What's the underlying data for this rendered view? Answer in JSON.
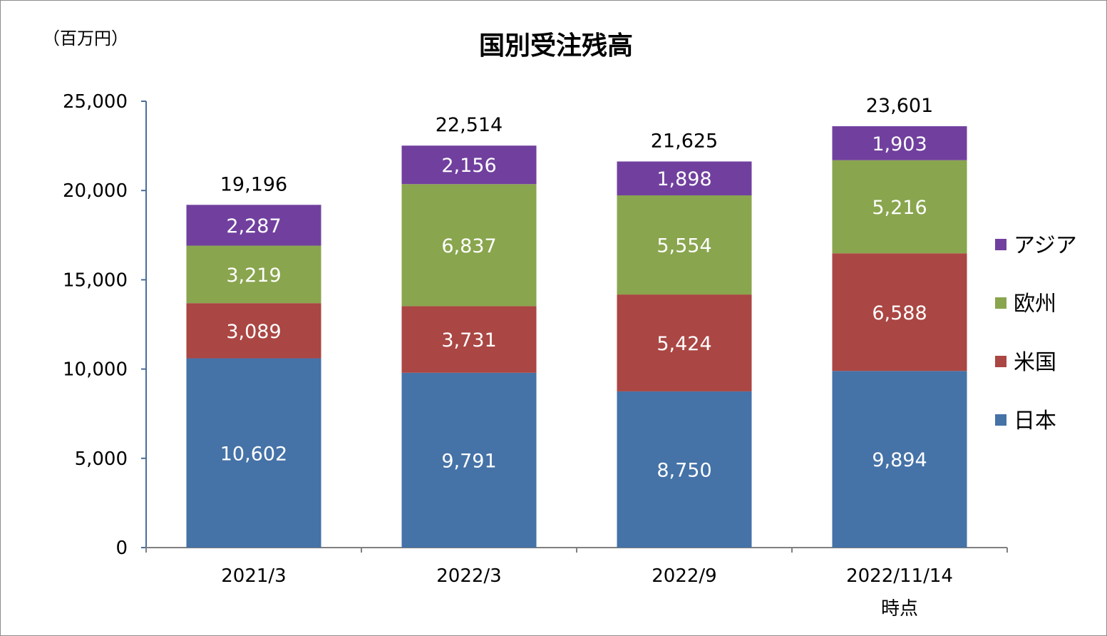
{
  "chart_data": {
    "type": "bar",
    "stacked": true,
    "title": "国別受注残高",
    "unit_label": "（百万円）",
    "categories": [
      "2021/3",
      "2022/3",
      "2022/9",
      "2022/11/14\n時点"
    ],
    "series": [
      {
        "name": "日本",
        "color": "#4572A7",
        "values": [
          10602,
          9791,
          8750,
          9894
        ],
        "labels": [
          "10,602",
          "9,791",
          "8,750",
          "9,894"
        ]
      },
      {
        "name": "米国",
        "color": "#AA4643",
        "values": [
          3089,
          3731,
          5424,
          6588
        ],
        "labels": [
          "3,089",
          "3,731",
          "5,424",
          "6,588"
        ]
      },
      {
        "name": "欧州",
        "color": "#89A54E",
        "values": [
          3219,
          6837,
          5554,
          5216
        ],
        "labels": [
          "3,219",
          "6,837",
          "5,554",
          "5,216"
        ]
      },
      {
        "name": "アジア",
        "color": "#71409E",
        "values": [
          2287,
          2156,
          1898,
          1903
        ],
        "labels": [
          "2,287",
          "2,156",
          "1,898",
          "1,903"
        ]
      }
    ],
    "totals": [
      19196,
      22514,
      21625,
      23601
    ],
    "total_labels": [
      "19,196",
      "22,514",
      "21,625",
      "23,601"
    ],
    "ylim": [
      0,
      25000
    ],
    "yticks": [
      0,
      5000,
      10000,
      15000,
      20000,
      25000
    ],
    "ytick_labels": [
      "0",
      "5,000",
      "10,000",
      "15,000",
      "20,000",
      "25,000"
    ],
    "grid": false,
    "legend_position": "right"
  }
}
